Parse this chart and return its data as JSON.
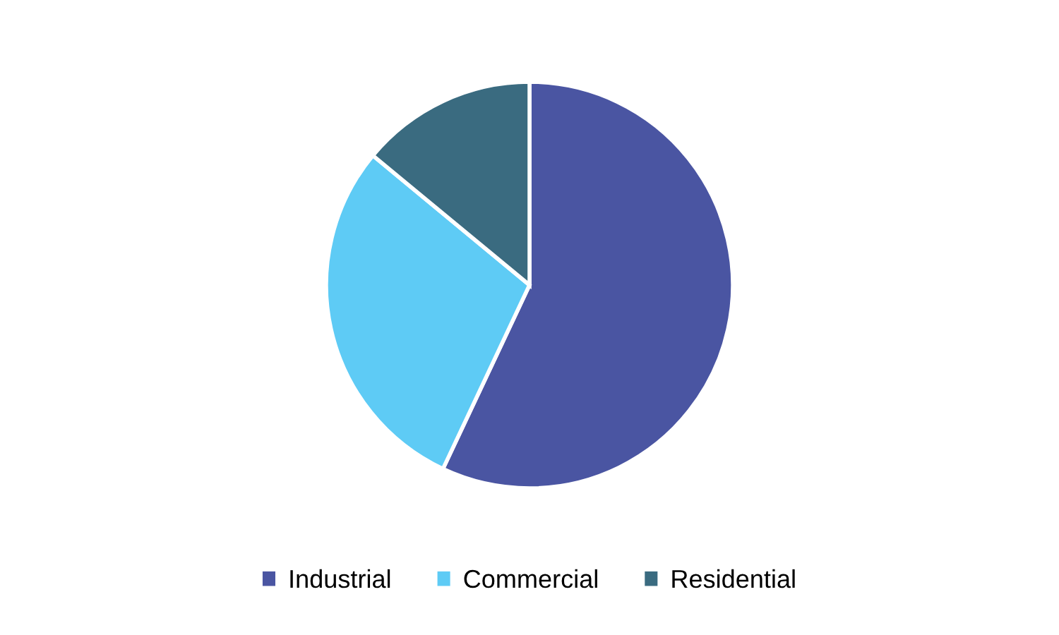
{
  "chart_data": {
    "type": "pie",
    "categories": [
      "Industrial",
      "Commercial",
      "Residential"
    ],
    "values": [
      57,
      29,
      14
    ],
    "colors": [
      "#4a55a2",
      "#5ecbf5",
      "#3a6b80"
    ],
    "legend": "bottom"
  }
}
